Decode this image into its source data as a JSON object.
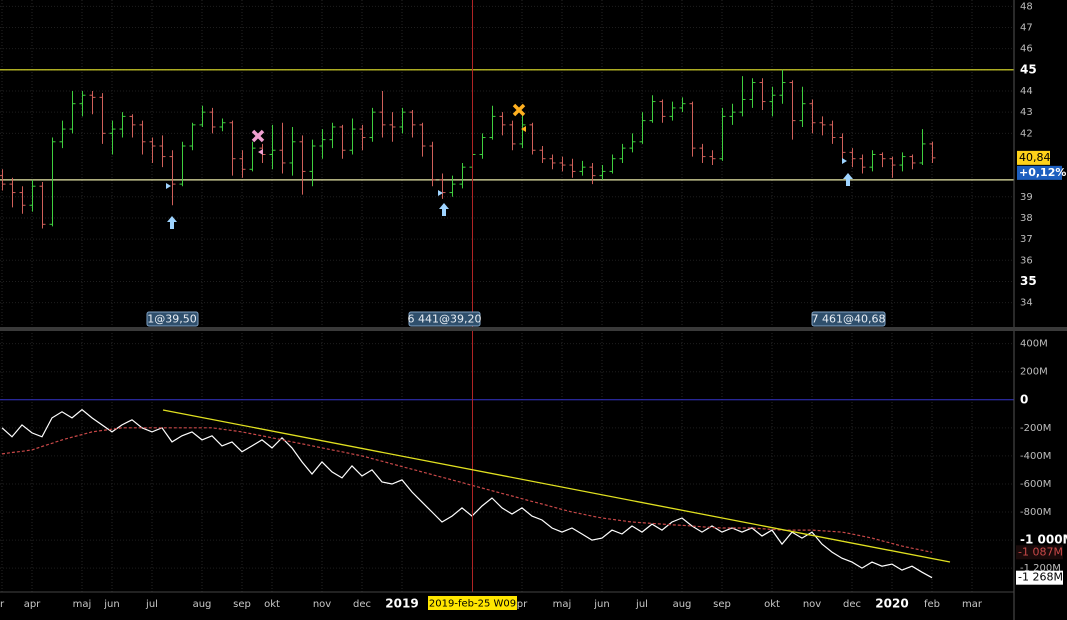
{
  "chart_data": [
    {
      "type": "ohlc",
      "open": [
        40.0,
        39.6,
        39.2,
        38.6,
        39.5,
        37.7,
        41.6,
        42.2,
        43.4,
        43.8,
        43.7,
        42.0,
        42.2,
        42.8,
        42.4,
        41.6,
        41.4,
        40.9,
        39.6,
        41.4,
        42.4,
        43.0,
        42.3,
        42.5,
        40.8,
        40.3,
        41.3,
        41.0,
        41.2,
        40.6,
        41.6,
        40.2,
        41.4,
        41.7,
        42.3,
        41.2,
        42.2,
        41.8,
        43.0,
        42.4,
        42.3,
        43.0,
        42.4,
        41.4,
        39.8,
        39.2,
        39.6,
        40.4,
        41.0,
        41.8,
        42.8,
        42.4,
        41.5,
        42.4,
        41.2,
        40.8,
        40.6,
        40.5,
        40.2,
        40.4,
        40.0,
        40.2,
        40.8,
        41.3,
        41.6,
        42.6,
        43.5,
        42.8,
        43.2,
        43.4,
        41.3,
        40.9,
        40.8,
        42.8,
        43.0,
        43.6,
        44.4,
        43.5,
        43.8,
        44.4,
        42.6,
        43.4,
        42.5,
        42.4,
        41.8,
        41.1,
        40.8,
        40.4,
        41.0,
        40.8,
        40.5,
        40.9,
        40.6,
        41.5
      ],
      "high": [
        40.3,
        39.9,
        39.5,
        39.8,
        39.7,
        41.8,
        42.6,
        44.0,
        44.0,
        44.0,
        43.9,
        42.6,
        43.0,
        42.9,
        42.6,
        41.8,
        41.9,
        41.2,
        41.6,
        42.5,
        43.3,
        43.2,
        42.7,
        42.6,
        41.2,
        41.6,
        41.5,
        42.4,
        42.5,
        42.3,
        41.9,
        41.7,
        42.2,
        42.5,
        42.4,
        42.7,
        42.4,
        43.2,
        44.0,
        43.0,
        43.2,
        43.1,
        42.5,
        41.6,
        40.1,
        40.0,
        40.6,
        41.2,
        42.0,
        43.3,
        43.0,
        42.6,
        43.0,
        42.5,
        41.4,
        41.0,
        40.9,
        40.8,
        40.7,
        40.6,
        40.5,
        41.0,
        41.5,
        42.0,
        43.0,
        43.8,
        43.6,
        43.5,
        43.7,
        43.5,
        41.5,
        41.2,
        43.2,
        43.4,
        44.7,
        44.6,
        44.6,
        44.2,
        45.0,
        44.5,
        44.2,
        43.6,
        42.8,
        42.6,
        42.0,
        41.3,
        41.0,
        41.2,
        41.1,
        40.9,
        41.1,
        41.0,
        42.2,
        41.6
      ],
      "low": [
        39.3,
        38.5,
        38.2,
        38.3,
        37.5,
        37.6,
        41.3,
        42.0,
        42.8,
        42.9,
        41.5,
        41.0,
        41.8,
        41.8,
        41.0,
        40.6,
        40.4,
        38.6,
        39.5,
        41.2,
        42.3,
        42.0,
        42.1,
        40.0,
        39.9,
        40.2,
        40.6,
        40.3,
        40.1,
        40.0,
        39.1,
        39.5,
        40.8,
        41.3,
        40.8,
        41.0,
        41.2,
        41.6,
        41.8,
        41.6,
        42.0,
        41.8,
        40.9,
        39.5,
        38.9,
        39.0,
        39.4,
        40.2,
        40.8,
        41.7,
        41.9,
        41.2,
        41.3,
        41.0,
        40.6,
        40.3,
        40.2,
        39.9,
        40.0,
        39.6,
        39.8,
        40.1,
        40.6,
        41.1,
        41.5,
        42.5,
        42.5,
        42.6,
        43.0,
        40.9,
        40.6,
        40.5,
        40.7,
        42.4,
        42.8,
        43.2,
        43.1,
        42.8,
        43.4,
        41.7,
        42.3,
        42.0,
        41.9,
        41.5,
        40.6,
        40.4,
        40.1,
        40.2,
        40.4,
        39.9,
        40.2,
        40.3,
        40.5,
        40.6
      ],
      "close": [
        39.6,
        39.2,
        38.6,
        39.5,
        37.7,
        41.6,
        42.2,
        43.4,
        43.8,
        43.7,
        42.0,
        42.2,
        42.8,
        42.4,
        41.6,
        41.4,
        40.9,
        39.6,
        41.4,
        42.4,
        43.0,
        42.3,
        42.5,
        40.8,
        40.3,
        41.3,
        41.0,
        41.2,
        40.6,
        41.6,
        40.2,
        41.4,
        41.7,
        42.3,
        41.2,
        42.2,
        41.8,
        43.0,
        42.4,
        42.3,
        43.0,
        42.4,
        41.4,
        39.8,
        39.2,
        39.6,
        40.4,
        41.0,
        41.8,
        42.8,
        42.4,
        41.5,
        42.4,
        41.2,
        40.8,
        40.6,
        40.5,
        40.2,
        40.4,
        40.0,
        40.2,
        40.8,
        41.3,
        41.6,
        42.6,
        43.5,
        42.8,
        43.2,
        43.4,
        41.3,
        40.9,
        40.8,
        42.8,
        43.0,
        43.6,
        44.4,
        43.5,
        43.8,
        44.4,
        42.6,
        43.4,
        42.5,
        42.4,
        41.8,
        41.1,
        40.8,
        40.4,
        41.0,
        40.8,
        40.5,
        40.9,
        40.6,
        41.5,
        40.84
      ],
      "up_color": "#3fcf3f",
      "down_color": "#d0605a",
      "ylim": [
        32.8,
        48.3
      ],
      "yticks": [
        34,
        35,
        36,
        37,
        38,
        39,
        42,
        43,
        44,
        45,
        46,
        47,
        48
      ],
      "grid": true,
      "levels": [
        {
          "value": 45,
          "color": "#e6e62e"
        },
        {
          "value": 39.8,
          "color": "#e8e8a8"
        }
      ],
      "last_price": {
        "value": 40.84,
        "label": "40,84"
      },
      "change": {
        "value": 0.12,
        "label": "+0,12%"
      },
      "trade_labels": [
        "1@39,50",
        "6 441@39,20",
        "7 461@40,68"
      ]
    },
    {
      "type": "line",
      "categories": [
        "r",
        null,
        null,
        "apr",
        null,
        null,
        null,
        null,
        "maj",
        null,
        null,
        "jun",
        null,
        null,
        null,
        "jul",
        null,
        null,
        null,
        null,
        "aug",
        null,
        null,
        null,
        "sep",
        null,
        null,
        "okt",
        null,
        null,
        null,
        null,
        "nov",
        null,
        null,
        null,
        "dec",
        null,
        null,
        null,
        "2019",
        null,
        null,
        null,
        null,
        null,
        null,
        null,
        null,
        null,
        null,
        null,
        "pr",
        null,
        null,
        null,
        "maj",
        null,
        null,
        null,
        "jun",
        null,
        null,
        null,
        "jul",
        null,
        null,
        null,
        "aug",
        null,
        null,
        null,
        "sep",
        null,
        null,
        null,
        null,
        "okt",
        null,
        null,
        null,
        "nov",
        null,
        null,
        null,
        "dec",
        null,
        null,
        null,
        "2020",
        null,
        null,
        null,
        "feb",
        null,
        null,
        null,
        "mar"
      ],
      "series": [
        {
          "color": "#ffffff",
          "last_label": "-1 268M",
          "values": [
            -200000000,
            -264000000,
            -179000000,
            -236000000,
            -264000000,
            -129000000,
            -86000000,
            -129000000,
            -71000000,
            -129000000,
            -179000000,
            -229000000,
            -179000000,
            -143000000,
            -200000000,
            -229000000,
            -200000000,
            -300000000,
            -257000000,
            -229000000,
            -286000000,
            -257000000,
            -329000000,
            -300000000,
            -371000000,
            -329000000,
            -286000000,
            -343000000,
            -271000000,
            -343000000,
            -443000000,
            -529000000,
            -443000000,
            -514000000,
            -557000000,
            -471000000,
            -543000000,
            -500000000,
            -586000000,
            -600000000,
            -571000000,
            -657000000,
            -729000000,
            -800000000,
            -871000000,
            -829000000,
            -771000000,
            -829000000,
            -757000000,
            -700000000,
            -771000000,
            -814000000,
            -771000000,
            -829000000,
            -857000000,
            -914000000,
            -943000000,
            -914000000,
            -957000000,
            -1000000000,
            -986000000,
            -929000000,
            -957000000,
            -900000000,
            -943000000,
            -886000000,
            -929000000,
            -871000000,
            -843000000,
            -900000000,
            -943000000,
            -900000000,
            -943000000,
            -914000000,
            -943000000,
            -914000000,
            -971000000,
            -929000000,
            -1029000000,
            -943000000,
            -986000000,
            -943000000,
            -1029000000,
            -1086000000,
            -1129000000,
            -1157000000,
            -1200000000,
            -1157000000,
            -1186000000,
            -1171000000,
            -1214000000,
            -1186000000,
            -1229000000,
            -1268000000,
            null,
            null,
            null,
            null
          ]
        },
        {
          "color": "#c84848",
          "dash": true,
          "last_label": "-1 087M",
          "values": [
            -386000000,
            -376000000,
            -367000000,
            -357000000,
            -333000000,
            -310000000,
            -286000000,
            -267000000,
            -248000000,
            -229000000,
            -219000000,
            -210000000,
            -200000000,
            -200000000,
            -200000000,
            -200000000,
            -200000000,
            -200000000,
            -200000000,
            -200000000,
            -200000000,
            -200000000,
            -210000000,
            -219000000,
            -229000000,
            -243000000,
            -257000000,
            -271000000,
            -285000000,
            -300000000,
            -314000000,
            -328000000,
            -343000000,
            -357000000,
            -371000000,
            -386000000,
            -400000000,
            -419000000,
            -438000000,
            -457000000,
            -476000000,
            -495000000,
            -514000000,
            -533000000,
            -552000000,
            -571000000,
            -590000000,
            -610000000,
            -629000000,
            -648000000,
            -667000000,
            -686000000,
            -705000000,
            -724000000,
            -743000000,
            -762000000,
            -781000000,
            -800000000,
            -814000000,
            -829000000,
            -843000000,
            -852000000,
            -862000000,
            -871000000,
            -876000000,
            -881000000,
            -886000000,
            -891000000,
            -895000000,
            -900000000,
            -905000000,
            -910000000,
            -914000000,
            -914000000,
            -914000000,
            -914000000,
            -919000000,
            -924000000,
            -929000000,
            -929000000,
            -929000000,
            -929000000,
            -934000000,
            -938000000,
            -943000000,
            -957000000,
            -971000000,
            -986000000,
            -1005000000,
            -1024000000,
            -1043000000,
            -1058000000,
            -1072000000,
            -1087000000,
            null,
            null,
            null,
            null
          ]
        }
      ],
      "ylim": [
        -1370000000,
        490000000
      ],
      "yticks": [
        {
          "value": 400000000,
          "label": "400M"
        },
        {
          "value": 200000000,
          "label": "200M"
        },
        0,
        {
          "value": -200000000,
          "label": "-200M"
        },
        {
          "value": -400000000,
          "label": "-400M"
        },
        {
          "value": -600000000,
          "label": "-600M"
        },
        {
          "value": -800000000,
          "label": "-800M"
        },
        {
          "value": -1000000000,
          "label": "-1 000M"
        },
        {
          "value": -1200000000,
          "label": "-1 200M"
        }
      ],
      "grid": true,
      "zero_line_color": "#3434c8",
      "cursor_label": "2019-feb-25 W09"
    }
  ]
}
